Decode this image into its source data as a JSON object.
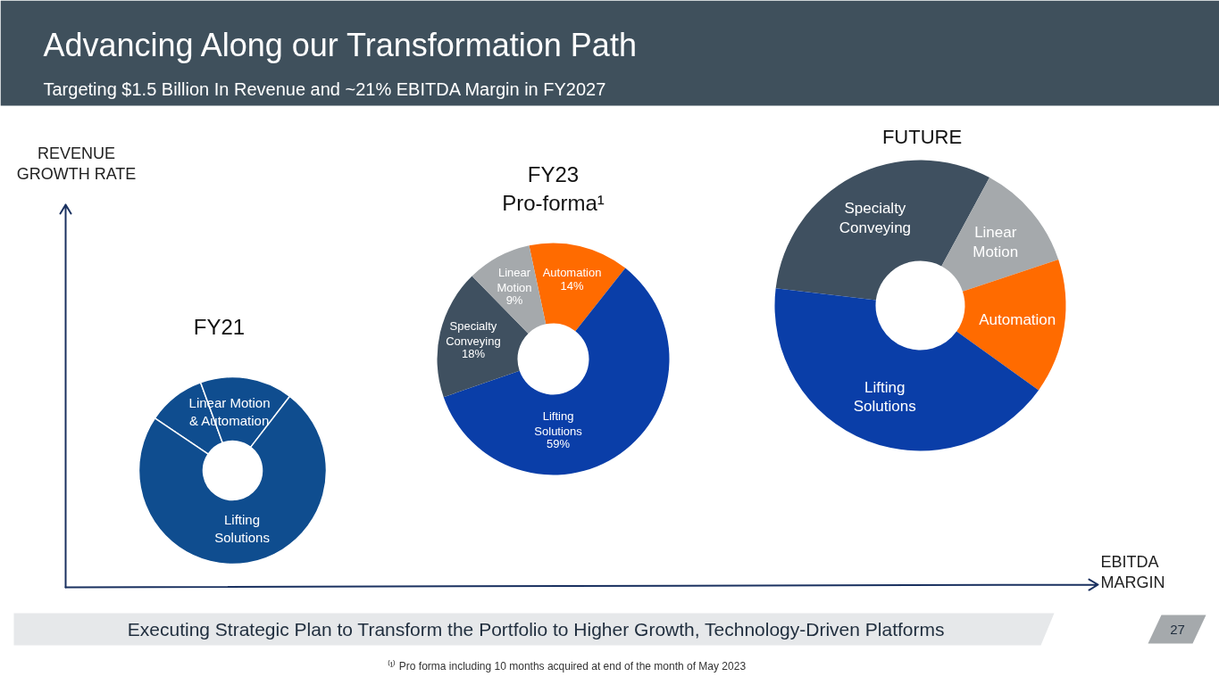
{
  "chart_data": [
    {
      "type": "other",
      "title": "Advancing Along our Transformation Path",
      "subtitle": "Targeting $1.5 Billion In Revenue and ~21% EBITDA Margin in FY2027",
      "xlabel": "EBITDA MARGIN",
      "ylabel": "REVENUE GROWTH RATE",
      "annotations": [
        "Executing Strategic Plan to Transform the Portfolio to Higher Growth, Technology-Driven Platforms",
        "27",
        "⁽¹⁾ Pro forma including 10 months acquired at end of the month of May 2023"
      ]
    },
    {
      "type": "donut",
      "title": "FY21",
      "categories": [
        null,
        "Linear Motion & Automation",
        "Lifting Solutions"
      ],
      "values": [
        10,
        16,
        74
      ],
      "colors": [
        "#0f4d8f",
        "#0f4d8f",
        "#0f4d8f"
      ]
    },
    {
      "type": "donut",
      "title": "FY23 Pro-forma¹",
      "categories": [
        "Automation",
        "Lifting Solutions",
        "Specialty Conveying",
        "Linear Motion"
      ],
      "values": [
        14,
        59,
        18,
        9
      ],
      "colors": [
        "#ff6b00",
        "#0a3ea8",
        "#3f5060",
        "#a5a9ac"
      ],
      "value_labels": [
        "14%",
        "59%",
        "18%",
        "9%"
      ]
    },
    {
      "type": "donut",
      "title": "FUTURE",
      "categories": [
        "Specialty Conveying",
        "Linear Motion",
        "Automation",
        "Lifting Solutions"
      ],
      "values": [
        31,
        12,
        15,
        42
      ],
      "colors": [
        "#3f5060",
        "#a5a9ac",
        "#ff6b00",
        "#0a3ea8"
      ]
    }
  ]
}
